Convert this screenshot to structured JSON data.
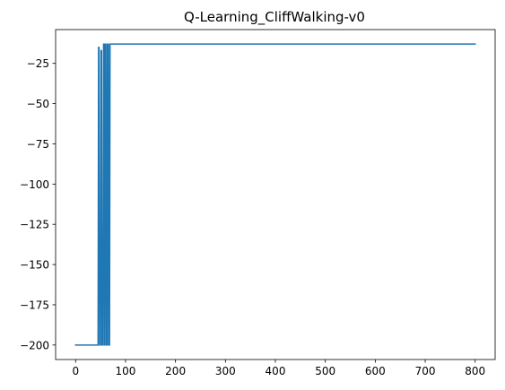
{
  "chart_data": {
    "type": "line",
    "title": "Q-Learning_CliffWalking-v0",
    "xlabel": "",
    "ylabel": "",
    "xlim": [
      -40,
      840
    ],
    "ylim": [
      -209,
      -4
    ],
    "grid": false,
    "x_ticks": [
      0,
      100,
      200,
      300,
      400,
      500,
      600,
      700,
      800
    ],
    "y_ticks": [
      -200,
      -175,
      -150,
      -125,
      -100,
      -75,
      -50,
      -25
    ],
    "x_tick_labels": [
      "0",
      "100",
      "200",
      "300",
      "400",
      "500",
      "600",
      "700",
      "800"
    ],
    "y_tick_labels": [
      "−200",
      "−175",
      "−150",
      "−125",
      "−100",
      "−75",
      "−50",
      "−25"
    ],
    "series": [
      {
        "color": "#1f77b4",
        "x": [
          0,
          45,
          46,
          47,
          48,
          49,
          50,
          51,
          52,
          53,
          55,
          56,
          57,
          58,
          59,
          60,
          61,
          62,
          63,
          64,
          65,
          66,
          67,
          68,
          69,
          70,
          800
        ],
        "y": [
          -200,
          -200,
          -15,
          -15,
          -200,
          -200,
          -200,
          -17,
          -17,
          -200,
          -200,
          -13,
          -13,
          -200,
          -13,
          -13,
          -200,
          -200,
          -13,
          -200,
          -13,
          -13,
          -200,
          -200,
          -13,
          -13,
          -13
        ]
      }
    ]
  }
}
